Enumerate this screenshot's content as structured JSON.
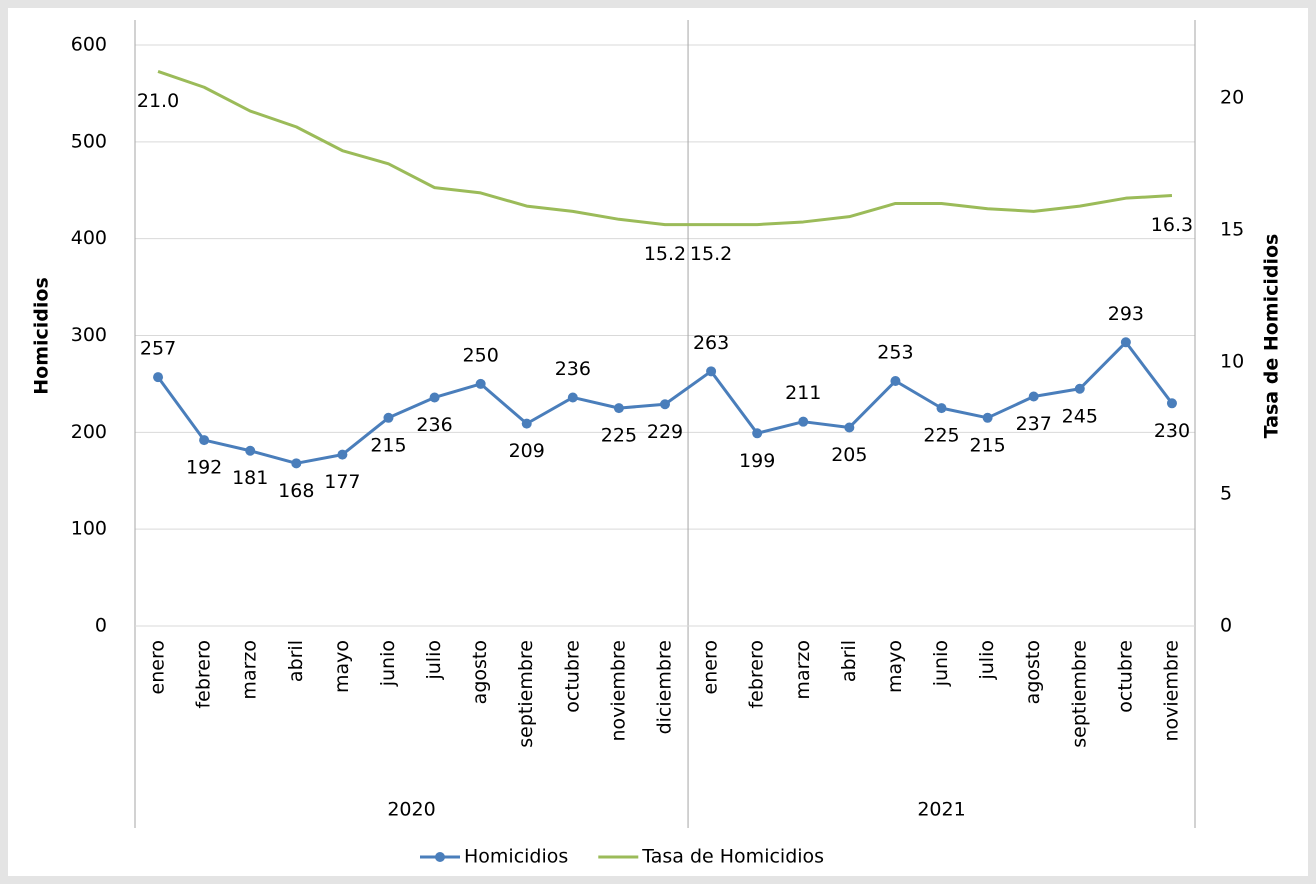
{
  "chart_data": {
    "type": "line",
    "categories": [
      "enero",
      "febrero",
      "marzo",
      "abril",
      "mayo",
      "junio",
      "julio",
      "agosto",
      "septiembre",
      "octubre",
      "noviembre",
      "diciembre",
      "enero",
      "febrero",
      "marzo",
      "abril",
      "mayo",
      "junio",
      "julio",
      "agosto",
      "septiembre",
      "octubre",
      "noviembre"
    ],
    "groups": [
      {
        "label": "2020",
        "size": 12
      },
      {
        "label": "2021",
        "size": 11
      }
    ],
    "y_label": "Homicidios",
    "y2_label": "Tasa de Homicidios",
    "ylim": [
      0,
      600
    ],
    "yticks": [
      0,
      100,
      200,
      300,
      400,
      500,
      600
    ],
    "y2lim": [
      0,
      22
    ],
    "y2ticks": [
      0,
      5,
      10,
      15,
      20
    ],
    "grid": true,
    "legend": "bottom",
    "series": [
      {
        "name": "Homicidios",
        "color": "#4a7ebb",
        "markers": true,
        "values": [
          257,
          192,
          181,
          168,
          177,
          215,
          236,
          250,
          209,
          236,
          225,
          229,
          263,
          199,
          211,
          205,
          253,
          225,
          215,
          237,
          245,
          293,
          230
        ]
      },
      {
        "name": "Tasa de Homicidios",
        "color": "#9bbb59",
        "axis": "y2",
        "label_color": "#f79646",
        "values": [
          21.0,
          20.4,
          19.5,
          18.9,
          18.0,
          17.5,
          16.6,
          16.4,
          15.9,
          15.7,
          15.4,
          15.2,
          15.2,
          15.2,
          15.3,
          15.5,
          16.0,
          16.0,
          15.8,
          15.7,
          15.9,
          16.2,
          16.3
        ],
        "value_labels": [
          "21.0",
          null,
          null,
          null,
          null,
          null,
          null,
          null,
          null,
          null,
          null,
          "15.2",
          "15.2",
          null,
          null,
          null,
          null,
          null,
          null,
          null,
          null,
          null,
          "16.3"
        ]
      }
    ]
  }
}
